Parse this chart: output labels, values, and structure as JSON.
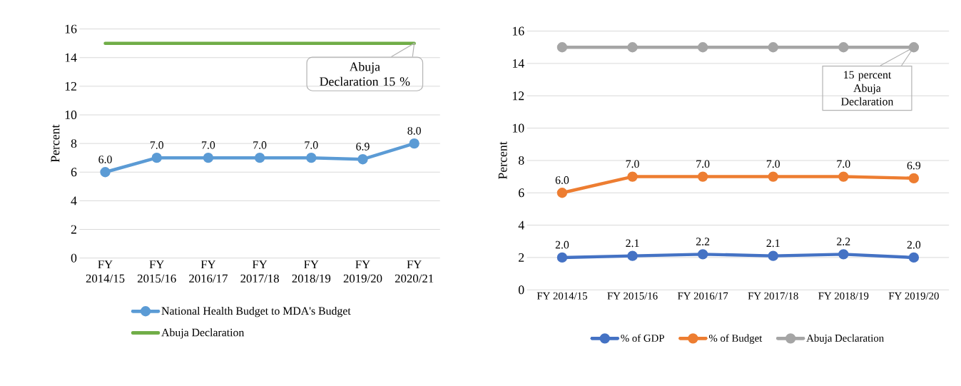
{
  "chart_data": [
    {
      "type": "line",
      "ylabel": "Percent",
      "categories": [
        "FY 2014/15",
        "FY 2015/16",
        "FY 2016/17",
        "FY 2017/18",
        "FY 2018/19",
        "FY 2019/20",
        "FY 2020/21"
      ],
      "series": [
        {
          "name": "National Health Budget to MDA's Budget",
          "color": "#5b9bd5",
          "marker": "circle",
          "values": [
            6.0,
            7.0,
            7.0,
            7.0,
            7.0,
            6.9,
            8.0
          ],
          "value_labels": [
            "6.0",
            "7.0",
            "7.0",
            "7.0",
            "7.0",
            "6.9",
            "8.0"
          ]
        },
        {
          "name": "Abuja Declaration",
          "color": "#70ad47",
          "marker": "none",
          "values": [
            15,
            15,
            15,
            15,
            15,
            15,
            15
          ]
        }
      ],
      "ylim": [
        0,
        16
      ],
      "yticks": [
        0,
        2,
        4,
        6,
        8,
        10,
        12,
        14,
        16
      ],
      "grid": "y",
      "legend": "bottom",
      "annotations": [
        {
          "text": "Abuja Declaration 15 %",
          "x": "FY 2020/21",
          "y": 15
        }
      ]
    },
    {
      "type": "line",
      "ylabel": "Percent",
      "categories": [
        "FY 2014/15",
        "FY 2015/16",
        "FY 2016/17",
        "FY 2017/18",
        "FY 2018/19",
        "FY 2019/20"
      ],
      "series": [
        {
          "name": "% of GDP",
          "color": "#4472c4",
          "marker": "circle",
          "values": [
            2.0,
            2.1,
            2.2,
            2.1,
            2.2,
            2.0
          ],
          "value_labels": [
            "2.0",
            "2.1",
            "2.2",
            "2.1",
            "2.2",
            "2.0"
          ]
        },
        {
          "name": "% of Budget",
          "color": "#ed7d31",
          "marker": "circle",
          "values": [
            6.0,
            7.0,
            7.0,
            7.0,
            7.0,
            6.9
          ],
          "value_labels": [
            "6.0",
            "7.0",
            "7.0",
            "7.0",
            "7.0",
            "6.9"
          ]
        },
        {
          "name": "Abuja Declaration",
          "color": "#a5a5a5",
          "marker": "circle",
          "values": [
            15,
            15,
            15,
            15,
            15,
            15
          ]
        }
      ],
      "ylim": [
        0,
        16
      ],
      "yticks": [
        0,
        2,
        4,
        6,
        8,
        10,
        12,
        14,
        16
      ],
      "grid": "y",
      "legend": "bottom",
      "annotations": [
        {
          "text": "15 percent Abuja Declaration",
          "x": "FY 2019/20",
          "y": 15
        }
      ]
    }
  ]
}
